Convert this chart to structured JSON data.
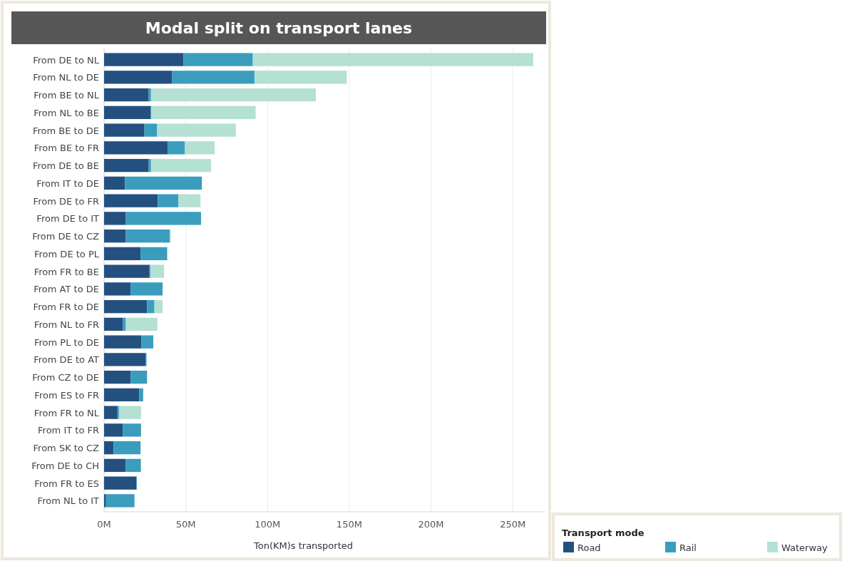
{
  "chart_data": {
    "type": "bar",
    "orientation": "horizontal",
    "stacked": true,
    "title": "Modal split on transport lanes",
    "xlabel": "Ton(KM)s transported",
    "legend_title": "Transport mode",
    "legend": "bottom right",
    "grid": "x",
    "categories": [
      "From DE to NL",
      "From NL to DE",
      "From BE to NL",
      "From NL to BE",
      "From BE to DE",
      "From BE to FR",
      "From DE to BE",
      "From IT to DE",
      "From DE to FR",
      "From DE to IT",
      "From DE to CZ",
      "From DE to PL",
      "From FR to BE",
      "From AT to DE",
      "From FR to DE",
      "From NL to FR",
      "From PL to DE",
      "From DE to AT",
      "From CZ to DE",
      "From ES to FR",
      "From FR to NL",
      "From IT to FR",
      "From SK to CZ",
      "From DE to CH",
      "From FR to ES",
      "From NL to IT"
    ],
    "xlim": [
      0,
      270
    ],
    "xticks": [
      {
        "value": 0,
        "label": "0M"
      },
      {
        "value": 50,
        "label": "50M"
      },
      {
        "value": 100,
        "label": "100M"
      },
      {
        "value": 150,
        "label": "150M"
      },
      {
        "value": 200,
        "label": "200M"
      },
      {
        "value": 250,
        "label": "250M"
      }
    ],
    "series": [
      {
        "name": "Road",
        "color": "#24507f",
        "values": [
          48.5,
          41.5,
          27.3,
          28.5,
          24.7,
          38.8,
          27.3,
          12.8,
          32.9,
          13.3,
          13.3,
          22.3,
          27.8,
          16.2,
          26.3,
          11.4,
          22.8,
          25.4,
          16.2,
          21.6,
          8.2,
          11.4,
          5.8,
          13.3,
          19.7,
          1.2
        ]
      },
      {
        "name": "Rail",
        "color": "#3a9dbd",
        "values": [
          42.5,
          50.5,
          1.4,
          0.5,
          7.8,
          10.5,
          1.4,
          47,
          12.5,
          46,
          26.8,
          16.3,
          0.5,
          19.6,
          4.5,
          1.9,
          7.3,
          0.6,
          10.1,
          2.3,
          0.9,
          11.2,
          16.5,
          9.2,
          0.4,
          17.4
        ]
      },
      {
        "name": "Waterway",
        "color": "#b5e0d4",
        "values": [
          171.5,
          56.5,
          100.8,
          63.7,
          48.1,
          18.4,
          36.7,
          null,
          13.6,
          null,
          0.7,
          null,
          8.4,
          null,
          5,
          19.3,
          null,
          null,
          null,
          null,
          13.5,
          null,
          null,
          null,
          null,
          null
        ]
      }
    ]
  }
}
